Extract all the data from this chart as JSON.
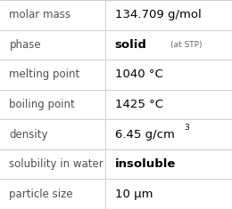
{
  "rows": [
    {
      "label": "molar mass",
      "value": "134.709 g/mol",
      "type": "plain"
    },
    {
      "label": "phase",
      "value": "solid",
      "type": "phase",
      "note": "(at STP)"
    },
    {
      "label": "melting point",
      "value": "1040 °C",
      "type": "plain"
    },
    {
      "label": "boiling point",
      "value": "1425 °C",
      "type": "plain"
    },
    {
      "label": "density",
      "value": "6.45 g/cm",
      "type": "super",
      "super": "3"
    },
    {
      "label": "solubility in water",
      "value": "insoluble",
      "type": "bold"
    },
    {
      "label": "particle size",
      "value": "10 μm",
      "type": "plain"
    }
  ],
  "bg_color": "#ffffff",
  "line_color": "#cccccc",
  "label_color": "#505050",
  "value_color": "#000000",
  "label_fontsize": 8.5,
  "value_fontsize": 9.5,
  "col_split": 0.455
}
